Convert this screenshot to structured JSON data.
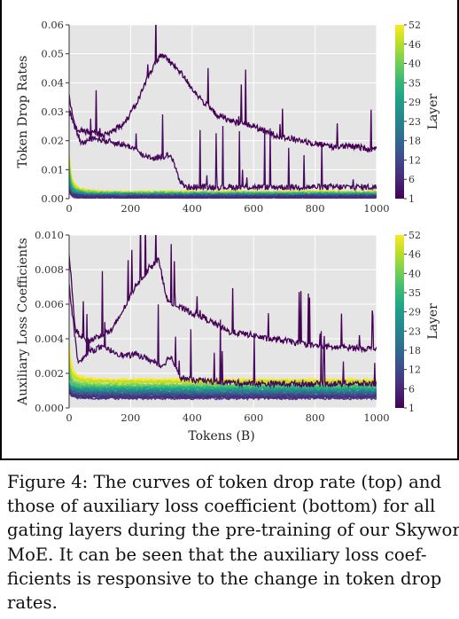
{
  "chart_data": [
    {
      "type": "line",
      "ylabel": "Token Drop Rates",
      "xlabel": "",
      "xlim": [
        0,
        1000
      ],
      "ylim": [
        0,
        0.06
      ],
      "xticks": [
        0,
        200,
        400,
        600,
        800,
        1000
      ],
      "xtick_labels": [
        "0",
        "200",
        "400",
        "600",
        "800",
        "1000"
      ],
      "yticks": [
        0,
        0.01,
        0.02,
        0.03,
        0.04,
        0.05,
        0.06
      ],
      "ytick_labels": [
        "0.00",
        "0.01",
        "0.02",
        "0.03",
        "0.04",
        "0.05",
        "0.06"
      ],
      "grid": true,
      "colorbar": {
        "label": "Layer",
        "ticks": [
          "1",
          "6",
          "12",
          "18",
          "23",
          "29",
          "35",
          "40",
          "46",
          "52"
        ]
      },
      "highlight_series": [
        {
          "color": "#440154",
          "x": [
            0,
            20,
            60,
            120,
            180,
            220,
            260,
            300,
            330,
            360,
            400,
            440,
            480,
            520,
            560,
            600,
            640,
            700,
            760,
            800,
            860,
            920,
            1000
          ],
          "y": [
            0.035,
            0.024,
            0.023,
            0.022,
            0.026,
            0.033,
            0.043,
            0.05,
            0.047,
            0.044,
            0.038,
            0.033,
            0.029,
            0.027,
            0.026,
            0.025,
            0.023,
            0.021,
            0.02,
            0.019,
            0.018,
            0.018,
            0.017
          ]
        },
        {
          "color": "#46095d",
          "x": [
            0,
            40,
            80,
            120,
            160,
            200,
            240,
            280,
            320,
            340,
            360,
            380,
            400,
            500,
            600,
            700,
            800,
            900,
            1000
          ],
          "y": [
            0.03,
            0.019,
            0.021,
            0.02,
            0.019,
            0.018,
            0.015,
            0.014,
            0.015,
            0.013,
            0.006,
            0.004,
            0.004,
            0.004,
            0.004,
            0.004,
            0.004,
            0.004,
            0.004
          ]
        }
      ],
      "bands": [
        {
          "color": "#fde725",
          "y0": 0.0058,
          "y1": 0.0022
        },
        {
          "color": "#bddf26",
          "y0": 0.0052,
          "y1": 0.002
        },
        {
          "color": "#7ad151",
          "y0": 0.0045,
          "y1": 0.0018
        },
        {
          "color": "#44bf70",
          "y0": 0.0038,
          "y1": 0.0016
        },
        {
          "color": "#22a884",
          "y0": 0.0032,
          "y1": 0.0014
        },
        {
          "color": "#21918c",
          "y0": 0.0026,
          "y1": 0.0012
        },
        {
          "color": "#2a788e",
          "y0": 0.0021,
          "y1": 0.001
        },
        {
          "color": "#355f8d",
          "y0": 0.0017,
          "y1": 0.0008
        },
        {
          "color": "#414487",
          "y0": 0.0013,
          "y1": 0.0006
        },
        {
          "color": "#472d7b",
          "y0": 0.001,
          "y1": 0.0004
        }
      ]
    },
    {
      "type": "line",
      "ylabel": "Auxiliary Loss Coefficients",
      "xlabel": "Tokens (B)",
      "xlim": [
        0,
        1000
      ],
      "ylim": [
        0,
        0.01
      ],
      "xticks": [
        0,
        200,
        400,
        600,
        800,
        1000
      ],
      "xtick_labels": [
        "0",
        "200",
        "400",
        "600",
        "800",
        "1000"
      ],
      "yticks": [
        0,
        0.002,
        0.004,
        0.006,
        0.008,
        0.01
      ],
      "ytick_labels": [
        "0.000",
        "0.002",
        "0.004",
        "0.006",
        "0.008",
        "0.010"
      ],
      "grid": true,
      "colorbar": {
        "label": "Layer",
        "ticks": [
          "1",
          "6",
          "12",
          "18",
          "23",
          "29",
          "35",
          "40",
          "46",
          "52"
        ]
      },
      "highlight_series": [
        {
          "color": "#440154",
          "x": [
            0,
            20,
            60,
            100,
            140,
            180,
            220,
            260,
            290,
            300,
            320,
            360,
            400,
            440,
            480,
            520,
            560,
            600,
            640,
            700,
            760,
            800,
            860,
            920,
            1000
          ],
          "y": [
            0.009,
            0.0045,
            0.0038,
            0.0042,
            0.0045,
            0.0058,
            0.0072,
            0.008,
            0.0086,
            0.0078,
            0.0062,
            0.0058,
            0.0055,
            0.0052,
            0.0048,
            0.0044,
            0.0043,
            0.0042,
            0.004,
            0.0039,
            0.0037,
            0.0036,
            0.0035,
            0.0035,
            0.0034
          ]
        },
        {
          "color": "#46095d",
          "x": [
            0,
            30,
            60,
            100,
            140,
            180,
            220,
            260,
            300,
            330,
            360,
            400,
            500,
            600,
            700,
            800,
            900,
            1000
          ],
          "y": [
            0.007,
            0.0025,
            0.0032,
            0.0035,
            0.0033,
            0.003,
            0.0031,
            0.0028,
            0.0024,
            0.003,
            0.0018,
            0.0016,
            0.0015,
            0.0014,
            0.0014,
            0.0014,
            0.0014,
            0.0014
          ]
        }
      ],
      "bands": [
        {
          "color": "#fde725",
          "y0": 0.0022,
          "y1": 0.0016
        },
        {
          "color": "#bddf26",
          "y0": 0.0019,
          "y1": 0.0015
        },
        {
          "color": "#7ad151",
          "y0": 0.0016,
          "y1": 0.0013
        },
        {
          "color": "#44bf70",
          "y0": 0.0014,
          "y1": 0.0012
        },
        {
          "color": "#22a884",
          "y0": 0.0012,
          "y1": 0.0011
        },
        {
          "color": "#21918c",
          "y0": 0.0011,
          "y1": 0.001
        },
        {
          "color": "#2a788e",
          "y0": 0.001,
          "y1": 0.0009
        },
        {
          "color": "#355f8d",
          "y0": 0.0009,
          "y1": 0.0008
        },
        {
          "color": "#414487",
          "y0": 0.0008,
          "y1": 0.0007
        },
        {
          "color": "#472d7b",
          "y0": 0.0007,
          "y1": 0.0006
        }
      ]
    }
  ],
  "caption": {
    "lines": [
      "Figure 4: The curves of token drop rate (top) and",
      "those of auxiliary loss coefficient (bottom) for all",
      "gating layers during the pre-training of our Skywork-",
      "MoE. It can be seen that the auxiliary loss coef-",
      "ficients is responsive to the change in token drop",
      "rates."
    ]
  },
  "colors": {
    "plot_bg": "#e5e5e5",
    "grid": "#ffffff",
    "viridis": [
      "#440154",
      "#482878",
      "#3e4989",
      "#31688e",
      "#26828e",
      "#1f9e89",
      "#35b779",
      "#6ece58",
      "#b5de2b",
      "#fde725"
    ]
  }
}
